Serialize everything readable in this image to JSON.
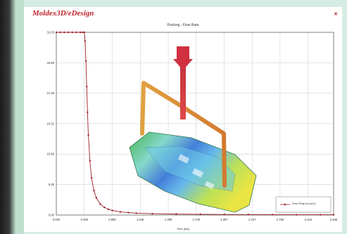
{
  "app": {
    "brand": "Moldex3D/eDesign",
    "close_icon": "close-icon"
  },
  "colors": {
    "series": "#a02028",
    "grid": "#c8c8c8",
    "accent": "#c0222a"
  },
  "chart_data": {
    "type": "line",
    "title": "Packing - Flow Rate",
    "xlabel": "Time [sec]",
    "ylabel": "",
    "xlim": [
      0,
      3.465
    ],
    "ylim": [
      0,
      32.03
    ],
    "x_ticks": [
      "0.000",
      "0.350",
      "0.699",
      "1.049",
      "1.399",
      "1.748",
      "2.097",
      "2.447",
      "2.796",
      "3.146",
      "3.465"
    ],
    "x_tick_values": [
      0,
      0.35,
      0.699,
      1.049,
      1.399,
      1.748,
      2.097,
      2.447,
      2.796,
      3.146,
      3.465
    ],
    "y_ticks": [
      "0.00",
      "5.35",
      "10.69",
      "16.02",
      "21.36",
      "26.69",
      "32.03"
    ],
    "y_tick_values": [
      0,
      5.35,
      10.69,
      16.02,
      21.36,
      26.69,
      32.03
    ],
    "grid": true,
    "legend_position": "bottom-right",
    "series": [
      {
        "name": "Flow Rate [cc/sec]",
        "x": [
          0,
          0.05,
          0.1,
          0.15,
          0.2,
          0.25,
          0.3,
          0.33,
          0.35,
          0.36,
          0.37,
          0.38,
          0.39,
          0.4,
          0.42,
          0.44,
          0.47,
          0.5,
          0.55,
          0.6,
          0.65,
          0.7,
          0.8,
          0.9,
          1.0,
          1.2,
          1.5,
          1.8,
          2.1,
          2.4,
          2.7,
          3.0,
          3.3,
          3.465
        ],
        "y": [
          32.03,
          32.03,
          32.03,
          32.03,
          32.03,
          32.03,
          32.03,
          32.03,
          32.03,
          30.5,
          27.0,
          22.5,
          18.0,
          14.0,
          9.5,
          6.5,
          4.3,
          3.0,
          1.9,
          1.35,
          1.0,
          0.8,
          0.55,
          0.42,
          0.33,
          0.24,
          0.17,
          0.13,
          0.1,
          0.08,
          0.07,
          0.06,
          0.05,
          0.05
        ]
      }
    ]
  }
}
